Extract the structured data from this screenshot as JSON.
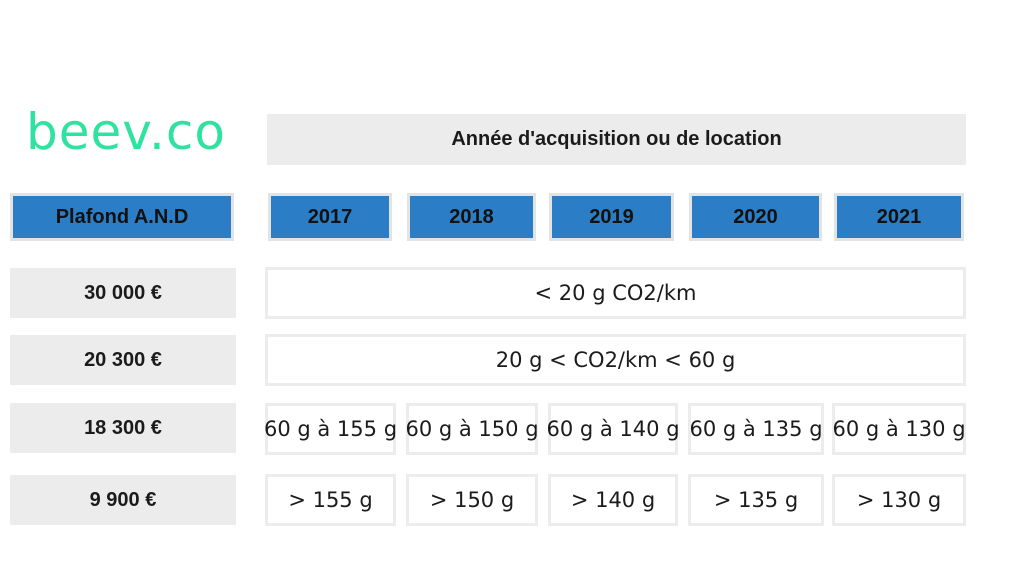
{
  "logo": "beev.co",
  "chart_data": {
    "type": "table",
    "title": "Année d'acquisition ou de location",
    "row_header": "Plafond A.N.D",
    "columns": [
      "2017",
      "2018",
      "2019",
      "2020",
      "2021"
    ],
    "rows": [
      {
        "ceiling": "30 000 €",
        "merged": "< 20 g CO2/km"
      },
      {
        "ceiling": "20 300 €",
        "merged": "20 g < CO2/km < 60 g"
      },
      {
        "ceiling": "18 300 €",
        "cells": [
          "60 g à 155 g",
          "60 g à 150 g",
          "60 g à 140 g",
          "60 g à 135 g",
          "60 g à 130 g"
        ]
      },
      {
        "ceiling": "9 900 €",
        "cells": [
          "> 155 g",
          "> 150 g",
          "> 140 g",
          "> 135 g",
          "> 130 g"
        ]
      }
    ]
  },
  "colors": {
    "accent_blue": "#2b7ec5",
    "logo_green": "#2fe2a0",
    "panel_gray": "#ececec"
  }
}
